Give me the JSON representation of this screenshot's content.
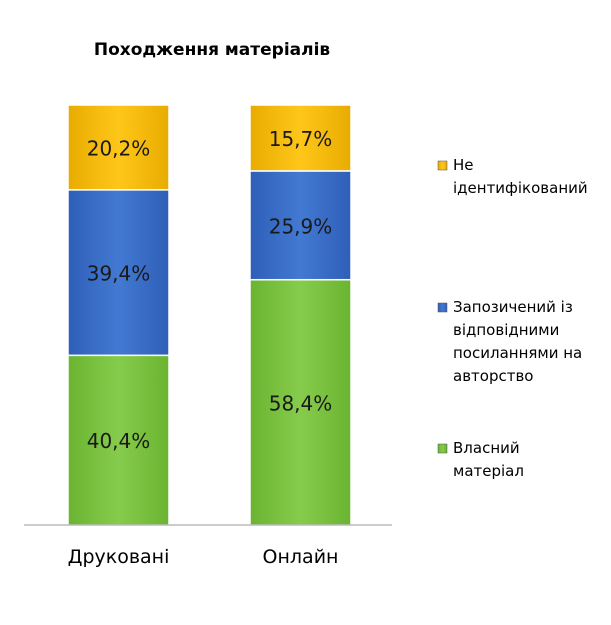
{
  "chart_data": {
    "type": "bar",
    "stacked": true,
    "title": "Походження матеріалів",
    "categories": [
      "Друковані",
      "Онлайн"
    ],
    "series": [
      {
        "name": "Власний матеріал",
        "values": [
          40.4,
          58.4
        ],
        "labels": [
          "40,4%",
          "58,4%"
        ],
        "color": "#7cc142"
      },
      {
        "name": "Запозичений із відповідними посиланнями на авторство",
        "values": [
          39.4,
          25.9
        ],
        "labels": [
          "39,4%",
          "25,9%"
        ],
        "color": "#3a6fc9"
      },
      {
        "name": "Не ідентифікований",
        "values": [
          20.2,
          15.7
        ],
        "labels": [
          "20,2%",
          "15,7%"
        ],
        "color": "#f5b800"
      }
    ],
    "ylim": [
      0,
      100
    ],
    "legend": [
      {
        "series": 2,
        "lines": [
          "Не",
          "ідентифікований"
        ]
      },
      {
        "series": 1,
        "lines": [
          "Запозичений із",
          "відповідними",
          "посиланнями на",
          "авторство"
        ]
      },
      {
        "series": 0,
        "lines": [
          "Власний",
          "матеріал"
        ]
      }
    ],
    "legend_position": "right",
    "grid": false
  }
}
